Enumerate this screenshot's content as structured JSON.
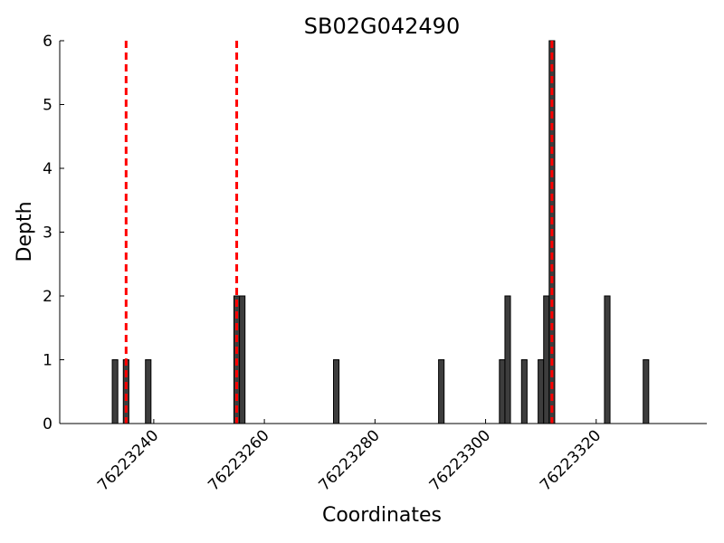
{
  "chart_data": {
    "type": "bar",
    "title": "SB02G042490",
    "xlabel": "Coordinates",
    "ylabel": "Depth",
    "xlim": [
      76223223,
      76223340
    ],
    "ylim": [
      0,
      6
    ],
    "xticks": [
      76223240,
      76223260,
      76223280,
      76223300,
      76223320
    ],
    "yticks": [
      0,
      1,
      2,
      3,
      4,
      5,
      6
    ],
    "bar_color": "#3d3d3d",
    "marker_color": "#ff0000",
    "bars": [
      {
        "x": 76223233,
        "value": 1
      },
      {
        "x": 76223235,
        "value": 1
      },
      {
        "x": 76223239,
        "value": 1
      },
      {
        "x": 76223255,
        "value": 2
      },
      {
        "x": 76223256,
        "value": 2
      },
      {
        "x": 76223273,
        "value": 1
      },
      {
        "x": 76223292,
        "value": 1
      },
      {
        "x": 76223303,
        "value": 1
      },
      {
        "x": 76223304,
        "value": 2
      },
      {
        "x": 76223307,
        "value": 1
      },
      {
        "x": 76223310,
        "value": 1
      },
      {
        "x": 76223311,
        "value": 2
      },
      {
        "x": 76223312,
        "value": 6
      },
      {
        "x": 76223322,
        "value": 2
      },
      {
        "x": 76223329,
        "value": 1
      }
    ],
    "vertical_markers": [
      76223235,
      76223255,
      76223312
    ]
  }
}
